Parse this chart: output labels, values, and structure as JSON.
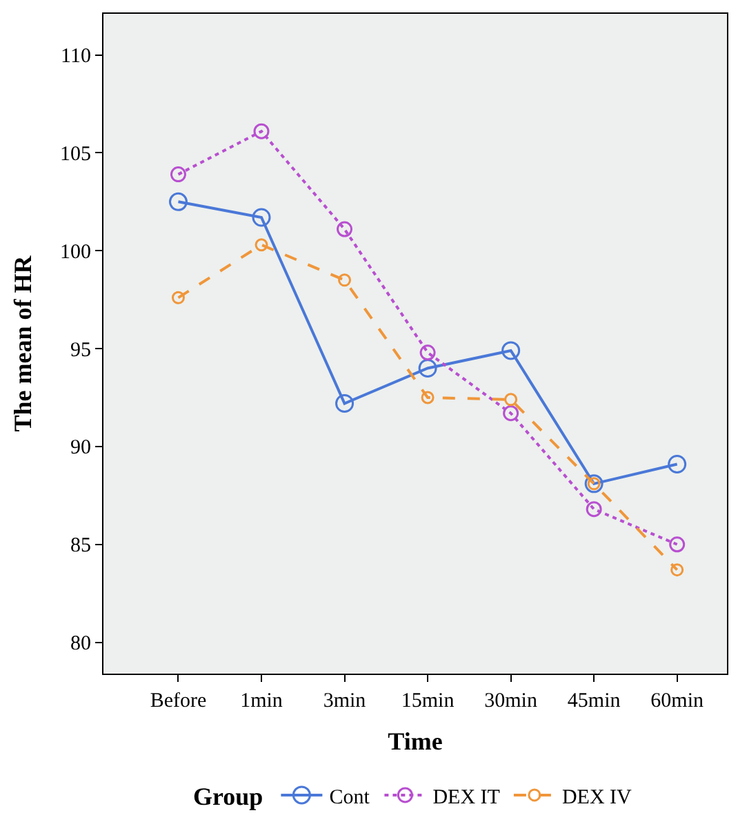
{
  "chart_data": {
    "type": "line",
    "xlabel": "Time",
    "ylabel": "The mean of HR",
    "legend_title": "Group",
    "legend": "bottom",
    "marker": "circle",
    "grid": false,
    "categories": [
      "Before",
      "1min",
      "3min",
      "15min",
      "30min",
      "45min",
      "60min"
    ],
    "ylim": [
      78.4,
      112.1
    ],
    "yticks": [
      80,
      85,
      90,
      95,
      100,
      105,
      110
    ],
    "series": [
      {
        "name": "Cont",
        "color": "#4a78d8",
        "line_style": "solid",
        "values": [
          102.5,
          101.7,
          92.2,
          94.0,
          94.9,
          88.1,
          89.1
        ]
      },
      {
        "name": "DEX IT",
        "color": "#b84fd0",
        "line_style": "dotted",
        "values": [
          103.9,
          106.1,
          101.1,
          94.8,
          91.7,
          86.8,
          85.0
        ]
      },
      {
        "name": "DEX IV",
        "color": "#f0963a",
        "line_style": "dashed",
        "values": [
          97.6,
          100.3,
          98.5,
          92.5,
          92.4,
          88.1,
          83.7
        ]
      }
    ]
  }
}
